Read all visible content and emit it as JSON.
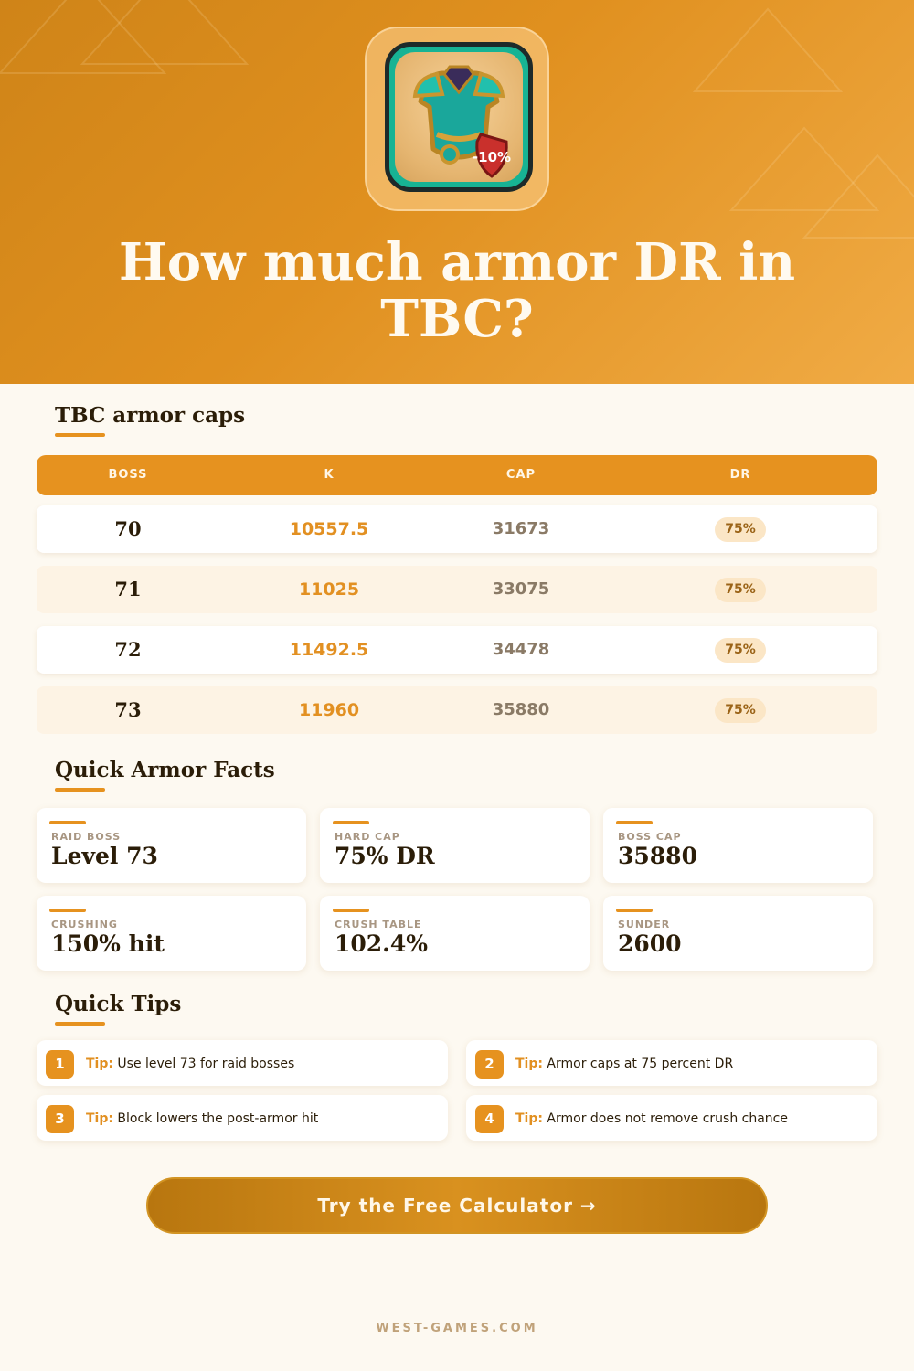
{
  "hero": {
    "title": "How much armor DR in TBC?",
    "icon": "armor-chestplate-icon",
    "icon_badge": "-10%"
  },
  "caps_section": {
    "title": "TBC armor caps",
    "columns": [
      "BOSS",
      "K",
      "CAP",
      "DR"
    ],
    "rows": [
      {
        "boss": "70",
        "k": "10557.5",
        "cap": "31673",
        "dr": "75%"
      },
      {
        "boss": "71",
        "k": "11025",
        "cap": "33075",
        "dr": "75%"
      },
      {
        "boss": "72",
        "k": "11492.5",
        "cap": "34478",
        "dr": "75%"
      },
      {
        "boss": "73",
        "k": "11960",
        "cap": "35880",
        "dr": "75%"
      }
    ]
  },
  "facts_section": {
    "title": "Quick Armor Facts",
    "facts": [
      {
        "label": "RAID BOSS",
        "value": "Level 73"
      },
      {
        "label": "HARD CAP",
        "value": "75% DR"
      },
      {
        "label": "BOSS CAP",
        "value": "35880"
      },
      {
        "label": "CRUSHING",
        "value": "150% hit"
      },
      {
        "label": "CRUSH TABLE",
        "value": "102.4%"
      },
      {
        "label": "SUNDER",
        "value": "2600"
      }
    ]
  },
  "tips_section": {
    "title": "Quick Tips",
    "tip_label": "Tip:",
    "tips": [
      {
        "num": "1",
        "text": "Use level 73 for raid bosses"
      },
      {
        "num": "2",
        "text": "Armor caps at 75 percent DR"
      },
      {
        "num": "3",
        "text": "Block lowers the post-armor hit"
      },
      {
        "num": "4",
        "text": "Armor does not remove crush chance"
      }
    ]
  },
  "cta": {
    "label": "Try the Free Calculator →"
  },
  "footer": {
    "site": "WEST-GAMES.COM"
  },
  "colors": {
    "accent": "#e6921f",
    "hero_start": "#cf8418",
    "hero_end": "#f0ab45",
    "background": "#fdf9f1",
    "text_dark": "#2b1d08"
  }
}
